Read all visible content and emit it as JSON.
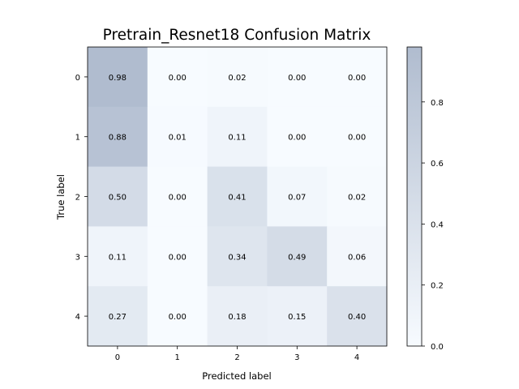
{
  "chart_data": {
    "type": "heatmap",
    "title": "Pretrain_Resnet18 Confusion Matrix",
    "xlabel": "Predicted label",
    "ylabel": "True label",
    "x_categories": [
      "0",
      "1",
      "2",
      "3",
      "4"
    ],
    "y_categories": [
      "0",
      "1",
      "2",
      "3",
      "4"
    ],
    "values": [
      [
        0.98,
        0.0,
        0.02,
        0.0,
        0.0
      ],
      [
        0.88,
        0.01,
        0.11,
        0.0,
        0.0
      ],
      [
        0.5,
        0.0,
        0.41,
        0.07,
        0.02
      ],
      [
        0.11,
        0.0,
        0.34,
        0.49,
        0.06
      ],
      [
        0.27,
        0.0,
        0.18,
        0.15,
        0.4
      ]
    ],
    "value_labels": [
      [
        "0.98",
        "0.00",
        "0.02",
        "0.00",
        "0.00"
      ],
      [
        "0.88",
        "0.01",
        "0.11",
        "0.00",
        "0.00"
      ],
      [
        "0.50",
        "0.00",
        "0.41",
        "0.07",
        "0.02"
      ],
      [
        "0.11",
        "0.00",
        "0.34",
        "0.49",
        "0.06"
      ],
      [
        "0.27",
        "0.00",
        "0.18",
        "0.15",
        "0.40"
      ]
    ],
    "colorbar": {
      "range": [
        0.0,
        0.98
      ],
      "ticks": [
        "0.0",
        "0.2",
        "0.4",
        "0.6",
        "0.8"
      ],
      "tick_values": [
        0.0,
        0.2,
        0.4,
        0.6,
        0.8
      ]
    },
    "colormap": {
      "low": "#f7fbff",
      "high": "#b0bccf"
    }
  }
}
